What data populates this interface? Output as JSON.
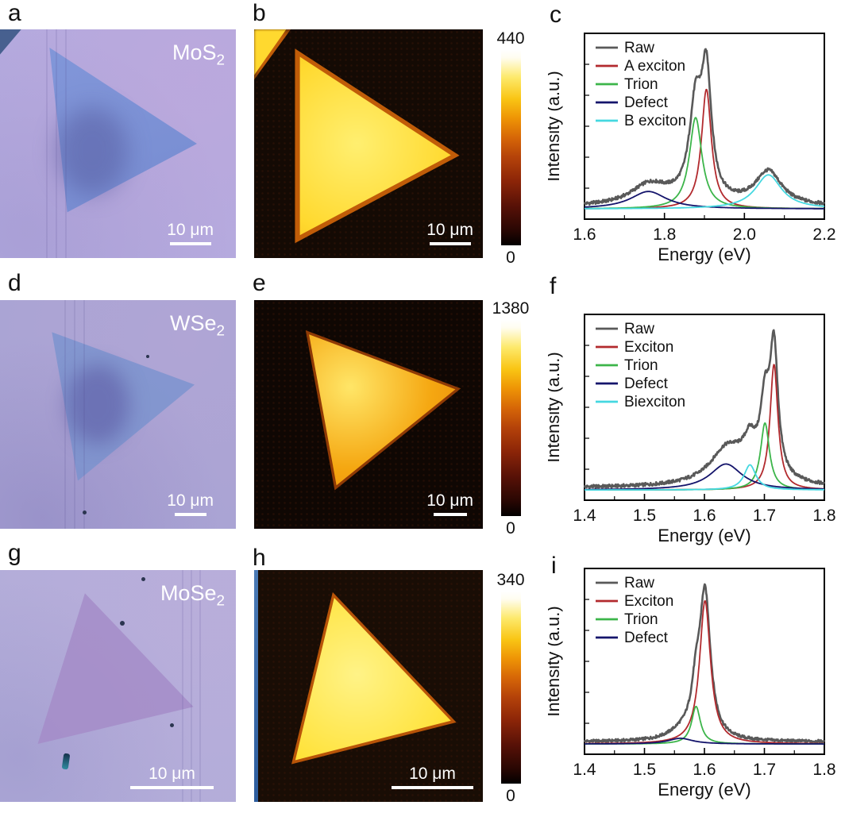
{
  "panels": {
    "a": {
      "letter": "a",
      "material": "MoS",
      "material_sub": "2",
      "scalebar": "10 μm"
    },
    "b": {
      "letter": "b",
      "scalebar": "10 μm",
      "colorbar_max": "440",
      "colorbar_min": "0"
    },
    "c": {
      "letter": "c"
    },
    "d": {
      "letter": "d",
      "material": "WSe",
      "material_sub": "2",
      "scalebar": "10 μm"
    },
    "e": {
      "letter": "e",
      "scalebar": "10 μm",
      "colorbar_max": "1380",
      "colorbar_min": "0"
    },
    "f": {
      "letter": "f"
    },
    "g": {
      "letter": "g",
      "material": "MoSe",
      "material_sub": "2",
      "scalebar": "10 μm"
    },
    "h": {
      "letter": "h",
      "scalebar": "10 μm",
      "colorbar_max": "340",
      "colorbar_min": "0"
    },
    "i": {
      "letter": "i"
    }
  },
  "chart_data": [
    {
      "id": "c",
      "type": "line",
      "title": "",
      "xlabel": "Energy (eV)",
      "ylabel": "Intensity (a.u.)",
      "xlim": [
        1.6,
        2.2
      ],
      "xticks": [
        1.6,
        1.8,
        2.0,
        2.2
      ],
      "xtick_labels": [
        "1.6",
        "1.8",
        "2.0",
        "2.2"
      ],
      "grid": false,
      "legend_position": "top-left",
      "series": [
        {
          "name": "Raw",
          "color": "#595959",
          "role": "sum",
          "noise": 0.01,
          "extra_peaks": [
            {
              "center": 1.8,
              "fwhm": 0.15,
              "amp": 0.03
            }
          ]
        },
        {
          "name": "A exciton",
          "color": "#b22a2e",
          "peaks": [
            {
              "center": 1.905,
              "fwhm": 0.03,
              "amp": 0.72
            }
          ]
        },
        {
          "name": "Trion",
          "color": "#3cb54a",
          "peaks": [
            {
              "center": 1.878,
              "fwhm": 0.038,
              "amp": 0.55
            }
          ]
        },
        {
          "name": "Defect",
          "color": "#14146b",
          "peaks": [
            {
              "center": 1.76,
              "fwhm": 0.11,
              "amp": 0.105
            }
          ]
        },
        {
          "name": "B exciton",
          "color": "#45d8e0",
          "peaks": [
            {
              "center": 2.06,
              "fwhm": 0.08,
              "amp": 0.205
            }
          ]
        }
      ]
    },
    {
      "id": "f",
      "type": "line",
      "title": "",
      "xlabel": "Energy (eV)",
      "ylabel": "Intensity (a.u.)",
      "xlim": [
        1.4,
        1.8
      ],
      "xticks": [
        1.4,
        1.5,
        1.6,
        1.7,
        1.8
      ],
      "xtick_labels": [
        "1.4",
        "1.5",
        "1.6",
        "1.7",
        "1.8"
      ],
      "grid": false,
      "legend_position": "top-left",
      "series": [
        {
          "name": "Raw",
          "color": "#595959",
          "role": "sum",
          "noise": 0.01,
          "extra_peaks": [
            {
              "center": 1.66,
              "fwhm": 0.1,
              "amp": 0.1
            }
          ]
        },
        {
          "name": "Exciton",
          "color": "#b22a2e",
          "peaks": [
            {
              "center": 1.716,
              "fwhm": 0.016,
              "amp": 0.75
            }
          ]
        },
        {
          "name": "Trion",
          "color": "#3cb54a",
          "peaks": [
            {
              "center": 1.701,
              "fwhm": 0.018,
              "amp": 0.4
            }
          ]
        },
        {
          "name": "Defect",
          "color": "#14146b",
          "peaks": [
            {
              "center": 1.636,
              "fwhm": 0.065,
              "amp": 0.155
            }
          ]
        },
        {
          "name": "Biexciton",
          "color": "#45d8e0",
          "peaks": [
            {
              "center": 1.676,
              "fwhm": 0.024,
              "amp": 0.15
            }
          ]
        }
      ]
    },
    {
      "id": "i",
      "type": "line",
      "title": "",
      "xlabel": "Energy (eV)",
      "ylabel": "Intensity (a.u.)",
      "xlim": [
        1.4,
        1.8
      ],
      "xticks": [
        1.4,
        1.5,
        1.6,
        1.7,
        1.8
      ],
      "xtick_labels": [
        "1.4",
        "1.5",
        "1.6",
        "1.7",
        "1.8"
      ],
      "grid": false,
      "legend_position": "top-left",
      "series": [
        {
          "name": "Raw",
          "color": "#595959",
          "role": "sum",
          "noise": 0.008,
          "extra_peaks": [
            {
              "center": 1.575,
              "fwhm": 0.05,
              "amp": 0.015
            }
          ]
        },
        {
          "name": "Exciton",
          "color": "#b22a2e",
          "peaks": [
            {
              "center": 1.601,
              "fwhm": 0.022,
              "amp": 0.8
            }
          ]
        },
        {
          "name": "Trion",
          "color": "#3cb54a",
          "peaks": [
            {
              "center": 1.586,
              "fwhm": 0.018,
              "amp": 0.21
            }
          ]
        },
        {
          "name": "Defect",
          "color": "#14146b",
          "peaks": [
            {
              "center": 1.56,
              "fwhm": 0.05,
              "amp": 0.032
            }
          ]
        }
      ]
    }
  ]
}
